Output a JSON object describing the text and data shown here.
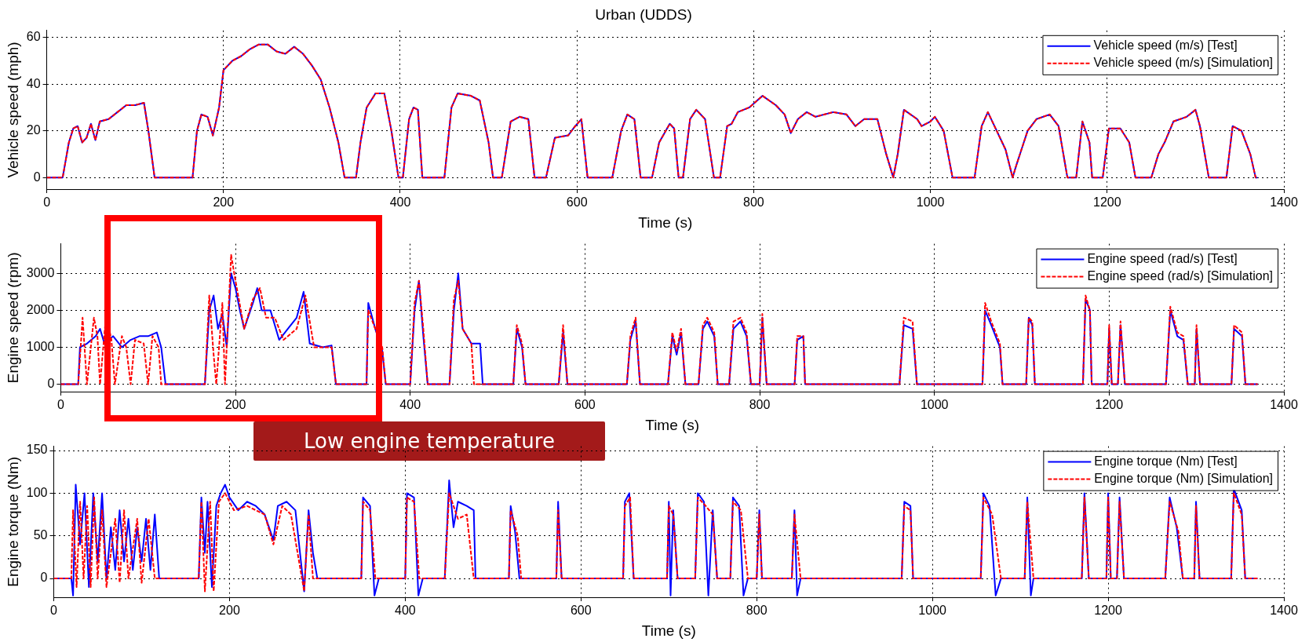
{
  "chart_data": [
    {
      "type": "line",
      "title": "Urban (UDDS)",
      "xlabel": "Time (s)",
      "ylabel": "Vehicle speed (mph)",
      "xlim": [
        0,
        1400
      ],
      "xticks": [
        0,
        200,
        400,
        600,
        800,
        1000,
        1200,
        1400
      ],
      "ylim": [
        -5,
        63
      ],
      "yticks": [
        0,
        20,
        40,
        60
      ],
      "grid": true,
      "legend": "top right",
      "series": [
        {
          "name": "Vehicle speed (m/s) [Test]",
          "color": "#0000ff",
          "line_style": "solid",
          "x": [
            0,
            18,
            25,
            30,
            35,
            40,
            45,
            50,
            55,
            60,
            70,
            80,
            90,
            100,
            110,
            115,
            122,
            165,
            170,
            175,
            182,
            188,
            195,
            200,
            210,
            220,
            230,
            240,
            250,
            260,
            270,
            280,
            290,
            300,
            310,
            320,
            330,
            337,
            350,
            355,
            362,
            372,
            382,
            390,
            398,
            403,
            410,
            415,
            420,
            425,
            450,
            458,
            465,
            480,
            490,
            500,
            505,
            515,
            525,
            535,
            545,
            552,
            565,
            575,
            590,
            598,
            605,
            612,
            640,
            650,
            657,
            665,
            672,
            685,
            693,
            705,
            710,
            715,
            720,
            728,
            735,
            745,
            755,
            762,
            770,
            775,
            782,
            795,
            810,
            825,
            835,
            842,
            850,
            860,
            870,
            890,
            905,
            915,
            925,
            940,
            950,
            958,
            963,
            970,
            985,
            990,
            1000,
            1005,
            1015,
            1025,
            1050,
            1058,
            1065,
            1075,
            1085,
            1093,
            1097,
            1110,
            1120,
            1135,
            1145,
            1155,
            1165,
            1172,
            1180,
            1183,
            1195,
            1202,
            1215,
            1225,
            1232,
            1250,
            1258,
            1265,
            1275,
            1290,
            1300,
            1305,
            1315,
            1335,
            1342,
            1352,
            1362,
            1368,
            1370
          ],
          "values": [
            0,
            0,
            15,
            21,
            22,
            15,
            17,
            23,
            16,
            24,
            25,
            28,
            31,
            31,
            32,
            20,
            0,
            0,
            20,
            27,
            26,
            18,
            30,
            46,
            50,
            52,
            55,
            57,
            57,
            54,
            53,
            56,
            53,
            48,
            42,
            30,
            15,
            0,
            0,
            15,
            30,
            36,
            36,
            20,
            0,
            0,
            25,
            30,
            29,
            0,
            0,
            30,
            36,
            35,
            33,
            15,
            0,
            0,
            24,
            26,
            25,
            0,
            0,
            17,
            18,
            22,
            25,
            0,
            0,
            20,
            27,
            25,
            0,
            0,
            15,
            23,
            21,
            0,
            0,
            25,
            29,
            25,
            0,
            0,
            22,
            23,
            28,
            30,
            35,
            31,
            27,
            19,
            25,
            28,
            26,
            28,
            27,
            22,
            25,
            25,
            10,
            0,
            10,
            29,
            25,
            22,
            24,
            26,
            20,
            0,
            0,
            22,
            28,
            20,
            12,
            0,
            5,
            20,
            25,
            27,
            22,
            0,
            0,
            24,
            15,
            0,
            0,
            21,
            21,
            15,
            0,
            0,
            10,
            15,
            24,
            26,
            29,
            22,
            0,
            0,
            22,
            20,
            10,
            0,
            0
          ]
        },
        {
          "name": "Vehicle speed (m/s) [Simulation]",
          "color": "#ff0000",
          "line_style": "dashed",
          "x": [
            0,
            18,
            25,
            30,
            35,
            40,
            45,
            50,
            55,
            60,
            70,
            80,
            90,
            100,
            110,
            115,
            122,
            165,
            170,
            175,
            182,
            188,
            195,
            200,
            210,
            220,
            230,
            240,
            250,
            260,
            270,
            280,
            290,
            300,
            310,
            320,
            330,
            337,
            350,
            355,
            362,
            372,
            382,
            390,
            398,
            403,
            410,
            415,
            420,
            425,
            450,
            458,
            465,
            480,
            490,
            500,
            505,
            515,
            525,
            535,
            545,
            552,
            565,
            575,
            590,
            598,
            605,
            612,
            640,
            650,
            657,
            665,
            672,
            685,
            693,
            705,
            710,
            715,
            720,
            728,
            735,
            745,
            755,
            762,
            770,
            775,
            782,
            795,
            810,
            825,
            835,
            842,
            850,
            860,
            870,
            890,
            905,
            915,
            925,
            940,
            950,
            958,
            963,
            970,
            985,
            990,
            1000,
            1005,
            1015,
            1025,
            1050,
            1058,
            1065,
            1075,
            1085,
            1093,
            1097,
            1110,
            1120,
            1135,
            1145,
            1155,
            1165,
            1172,
            1180,
            1183,
            1195,
            1202,
            1215,
            1225,
            1232,
            1250,
            1258,
            1265,
            1275,
            1290,
            1300,
            1305,
            1315,
            1335,
            1342,
            1352,
            1362,
            1368,
            1370
          ],
          "values": [
            0,
            0,
            15,
            21,
            22,
            15,
            17,
            23,
            16,
            24,
            25,
            28,
            31,
            31,
            32,
            20,
            0,
            0,
            20,
            27,
            26,
            18,
            30,
            46,
            50,
            52,
            55,
            57,
            57,
            54,
            53,
            56,
            53,
            48,
            42,
            30,
            15,
            0,
            0,
            15,
            30,
            36,
            36,
            20,
            0,
            0,
            25,
            30,
            29,
            0,
            0,
            30,
            36,
            35,
            33,
            15,
            0,
            0,
            24,
            26,
            25,
            0,
            0,
            17,
            18,
            22,
            25,
            0,
            0,
            20,
            27,
            25,
            0,
            0,
            15,
            23,
            21,
            0,
            0,
            25,
            29,
            25,
            0,
            0,
            22,
            23,
            28,
            30,
            35,
            31,
            27,
            19,
            25,
            28,
            26,
            28,
            27,
            22,
            25,
            25,
            10,
            0,
            10,
            29,
            25,
            22,
            24,
            26,
            20,
            0,
            0,
            22,
            28,
            20,
            12,
            0,
            5,
            20,
            25,
            27,
            22,
            0,
            0,
            24,
            15,
            0,
            0,
            21,
            21,
            15,
            0,
            0,
            10,
            15,
            24,
            26,
            29,
            22,
            0,
            0,
            22,
            20,
            10,
            0,
            0
          ]
        }
      ]
    },
    {
      "type": "line",
      "xlabel": "Time (s)",
      "ylabel": "Engine speed (rpm)",
      "xlim": [
        0,
        1400
      ],
      "xticks": [
        0,
        200,
        400,
        600,
        800,
        1000,
        1200,
        1400
      ],
      "ylim": [
        -200,
        3800
      ],
      "yticks": [
        0,
        1000,
        2000,
        3000
      ],
      "grid": true,
      "legend": "top right",
      "annotations": [
        "Low engine temperature"
      ],
      "series": [
        {
          "name": "Engine speed (rad/s) [Test]",
          "color": "#0000ff",
          "line_style": "solid",
          "x": [
            0,
            20,
            22,
            30,
            40,
            45,
            50,
            60,
            70,
            80,
            90,
            100,
            110,
            115,
            120,
            165,
            170,
            175,
            180,
            185,
            190,
            195,
            200,
            205,
            210,
            220,
            225,
            230,
            240,
            250,
            260,
            270,
            278,
            285,
            300,
            310,
            315,
            350,
            352,
            360,
            368,
            372,
            400,
            405,
            410,
            415,
            420,
            445,
            450,
            455,
            460,
            470,
            480,
            483,
            518,
            522,
            528,
            532,
            570,
            575,
            580,
            648,
            652,
            658,
            663,
            695,
            700,
            705,
            710,
            715,
            730,
            735,
            740,
            748,
            752,
            765,
            770,
            778,
            785,
            790,
            800,
            803,
            808,
            840,
            843,
            850,
            852,
            960,
            965,
            975,
            980,
            1055,
            1058,
            1065,
            1075,
            1078,
            1105,
            1108,
            1112,
            1115,
            1170,
            1173,
            1178,
            1180,
            1198,
            1200,
            1203,
            1210,
            1213,
            1218,
            1265,
            1270,
            1278,
            1285,
            1290,
            1298,
            1300,
            1304,
            1340,
            1343,
            1352,
            1356,
            1370
          ],
          "values": [
            0,
            0,
            1000,
            1100,
            1300,
            1500,
            1100,
            1300,
            1000,
            1200,
            1300,
            1300,
            1400,
            1000,
            0,
            0,
            2000,
            2400,
            1500,
            1900,
            1000,
            3000,
            2600,
            2000,
            1500,
            2200,
            2600,
            2000,
            2000,
            1200,
            1500,
            1800,
            2500,
            1100,
            1000,
            1050,
            0,
            0,
            2200,
            1500,
            900,
            0,
            0,
            2000,
            2800,
            1300,
            0,
            0,
            2000,
            3000,
            1500,
            1100,
            1100,
            0,
            0,
            1500,
            1000,
            0,
            0,
            1400,
            0,
            0,
            1200,
            1700,
            0,
            0,
            1300,
            800,
            1400,
            0,
            0,
            1500,
            1700,
            1300,
            0,
            0,
            1500,
            1700,
            1300,
            0,
            0,
            1800,
            0,
            0,
            1200,
            1300,
            0,
            0,
            1600,
            1500,
            0,
            0,
            2000,
            1600,
            1000,
            0,
            0,
            1800,
            1600,
            0,
            0,
            2300,
            2000,
            0,
            0,
            1500,
            0,
            0,
            1600,
            0,
            0,
            2000,
            1300,
            1200,
            0,
            0,
            1500,
            0,
            0,
            1500,
            1300,
            0,
            0
          ]
        },
        {
          "name": "Engine speed (rad/s) [Simulation]",
          "color": "#ff0000",
          "line_style": "dashed",
          "x": [
            0,
            20,
            25,
            30,
            38,
            42,
            45,
            52,
            58,
            62,
            70,
            75,
            80,
            85,
            95,
            100,
            105,
            112,
            115,
            165,
            170,
            175,
            178,
            185,
            188,
            192,
            195,
            200,
            210,
            220,
            228,
            235,
            245,
            255,
            270,
            280,
            290,
            310,
            315,
            350,
            352,
            360,
            368,
            372,
            400,
            405,
            410,
            415,
            420,
            445,
            450,
            455,
            460,
            470,
            473,
            518,
            522,
            528,
            532,
            570,
            575,
            580,
            648,
            652,
            658,
            663,
            695,
            700,
            705,
            710,
            715,
            730,
            735,
            740,
            748,
            752,
            765,
            770,
            778,
            785,
            790,
            800,
            803,
            808,
            840,
            843,
            850,
            852,
            960,
            965,
            975,
            980,
            1055,
            1058,
            1065,
            1075,
            1078,
            1105,
            1108,
            1112,
            1115,
            1170,
            1173,
            1178,
            1180,
            1198,
            1200,
            1203,
            1210,
            1213,
            1218,
            1265,
            1270,
            1278,
            1285,
            1290,
            1298,
            1300,
            1304,
            1340,
            1343,
            1352,
            1356,
            1370
          ],
          "values": [
            0,
            0,
            1800,
            0,
            1800,
            1300,
            0,
            1900,
            1200,
            0,
            1300,
            1000,
            0,
            1200,
            1100,
            0,
            1300,
            1000,
            0,
            0,
            2400,
            800,
            0,
            2200,
            0,
            2000,
            3500,
            2800,
            1500,
            2300,
            2600,
            1800,
            1800,
            1200,
            1500,
            2400,
            1000,
            1000,
            0,
            0,
            2000,
            1500,
            1000,
            0,
            0,
            2200,
            2800,
            1500,
            0,
            0,
            2300,
            2800,
            1500,
            1100,
            0,
            0,
            1600,
            1100,
            0,
            0,
            1600,
            0,
            0,
            1300,
            1800,
            0,
            0,
            1400,
            900,
            1500,
            0,
            0,
            1600,
            1800,
            1400,
            0,
            0,
            1700,
            1800,
            1400,
            0,
            0,
            1900,
            0,
            0,
            1300,
            1300,
            0,
            0,
            1800,
            1700,
            0,
            0,
            2200,
            1700,
            1100,
            0,
            0,
            1800,
            1700,
            0,
            0,
            2400,
            2000,
            0,
            0,
            1600,
            0,
            0,
            1700,
            0,
            0,
            2100,
            1400,
            1300,
            0,
            0,
            1600,
            0,
            0,
            1600,
            1400,
            0,
            0
          ]
        }
      ]
    },
    {
      "type": "line",
      "xlabel": "Time (s)",
      "ylabel": "Engine torque (Nm)",
      "xlim": [
        0,
        1400
      ],
      "xticks": [
        0,
        200,
        400,
        600,
        800,
        1000,
        1200,
        1400
      ],
      "ylim": [
        -22,
        155
      ],
      "yticks": [
        0,
        50,
        100,
        150
      ],
      "grid": true,
      "legend": "top right",
      "series": [
        {
          "name": "Engine torque (Nm) [Test]",
          "color": "#0000ff",
          "line_style": "solid",
          "x": [
            0,
            20,
            22,
            25,
            30,
            35,
            40,
            45,
            50,
            55,
            60,
            65,
            70,
            75,
            80,
            85,
            90,
            95,
            100,
            105,
            110,
            115,
            120,
            165,
            168,
            172,
            175,
            180,
            185,
            190,
            195,
            200,
            210,
            220,
            230,
            240,
            250,
            255,
            265,
            275,
            285,
            290,
            295,
            300,
            350,
            352,
            360,
            365,
            370,
            400,
            402,
            410,
            415,
            420,
            445,
            450,
            455,
            460,
            470,
            478,
            480,
            518,
            520,
            525,
            530,
            572,
            574,
            578,
            648,
            650,
            655,
            660,
            698,
            700,
            702,
            705,
            710,
            730,
            733,
            740,
            745,
            750,
            755,
            770,
            773,
            780,
            785,
            790,
            800,
            803,
            806,
            840,
            843,
            846,
            850,
            965,
            968,
            975,
            978,
            1055,
            1058,
            1065,
            1072,
            1078,
            1105,
            1108,
            1112,
            1115,
            1170,
            1173,
            1178,
            1198,
            1200,
            1203,
            1210,
            1213,
            1218,
            1265,
            1270,
            1278,
            1285,
            1298,
            1300,
            1304,
            1340,
            1343,
            1352,
            1356,
            1370
          ],
          "values": [
            0,
            0,
            -20,
            110,
            40,
            100,
            -10,
            100,
            20,
            100,
            0,
            60,
            10,
            80,
            20,
            70,
            10,
            60,
            20,
            70,
            10,
            75,
            0,
            0,
            95,
            30,
            90,
            -10,
            85,
            100,
            110,
            95,
            80,
            90,
            85,
            75,
            45,
            85,
            90,
            80,
            -15,
            80,
            30,
            0,
            0,
            95,
            85,
            -20,
            0,
            0,
            100,
            95,
            -20,
            0,
            0,
            115,
            60,
            90,
            85,
            80,
            0,
            0,
            85,
            55,
            0,
            0,
            90,
            0,
            0,
            90,
            100,
            0,
            0,
            90,
            -20,
            80,
            0,
            0,
            100,
            90,
            -20,
            80,
            0,
            0,
            95,
            85,
            -20,
            0,
            0,
            80,
            0,
            0,
            80,
            -20,
            0,
            0,
            90,
            85,
            0,
            0,
            100,
            85,
            -20,
            0,
            0,
            95,
            -20,
            0,
            0,
            100,
            0,
            0,
            100,
            0,
            0,
            95,
            0,
            0,
            95,
            60,
            0,
            0,
            90,
            0,
            0,
            105,
            80,
            0,
            0
          ]
        },
        {
          "name": "Engine torque (Nm) [Simulation]",
          "color": "#ff0000",
          "line_style": "dashed",
          "x": [
            0,
            20,
            22,
            26,
            30,
            34,
            38,
            42,
            46,
            50,
            55,
            60,
            70,
            75,
            80,
            85,
            95,
            100,
            108,
            115,
            165,
            168,
            172,
            178,
            182,
            188,
            195,
            205,
            220,
            240,
            250,
            260,
            270,
            285,
            290,
            295,
            350,
            352,
            360,
            366,
            400,
            402,
            410,
            416,
            445,
            450,
            460,
            470,
            478,
            518,
            520,
            528,
            532,
            572,
            574,
            578,
            648,
            650,
            656,
            660,
            698,
            700,
            705,
            710,
            730,
            733,
            742,
            750,
            755,
            770,
            773,
            782,
            790,
            800,
            803,
            806,
            840,
            843,
            850,
            965,
            968,
            975,
            978,
            1055,
            1058,
            1068,
            1078,
            1105,
            1108,
            1115,
            1170,
            1173,
            1178,
            1198,
            1200,
            1203,
            1210,
            1213,
            1218,
            1265,
            1270,
            1280,
            1285,
            1298,
            1300,
            1304,
            1340,
            1343,
            1352,
            1356,
            1370
          ],
          "values": [
            0,
            0,
            80,
            -10,
            90,
            0,
            85,
            -10,
            95,
            0,
            80,
            -10,
            70,
            -5,
            80,
            0,
            70,
            -5,
            70,
            0,
            0,
            90,
            -15,
            90,
            -15,
            90,
            100,
            80,
            85,
            75,
            40,
            85,
            75,
            -15,
            75,
            0,
            0,
            90,
            80,
            0,
            0,
            95,
            90,
            0,
            0,
            100,
            70,
            75,
            0,
            0,
            80,
            50,
            0,
            0,
            80,
            0,
            0,
            85,
            95,
            0,
            0,
            85,
            75,
            0,
            0,
            95,
            85,
            75,
            0,
            0,
            90,
            80,
            0,
            0,
            75,
            0,
            0,
            75,
            0,
            0,
            85,
            80,
            0,
            0,
            95,
            75,
            0,
            0,
            90,
            0,
            0,
            95,
            0,
            0,
            95,
            0,
            0,
            90,
            0,
            0,
            90,
            55,
            0,
            0,
            85,
            0,
            0,
            100,
            75,
            0,
            0
          ]
        }
      ]
    }
  ]
}
